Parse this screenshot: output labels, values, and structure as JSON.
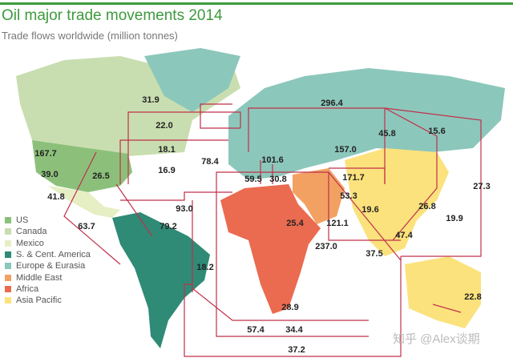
{
  "header": {
    "title": "Oil major trade movements 2014",
    "subtitle": "Trade flows worldwide (million tonnes)"
  },
  "colors": {
    "US": "#8cc07a",
    "Canada": "#c9deb0",
    "Mexico": "#e6eec4",
    "S. & Cent. America": "#2f8a76",
    "Europe & Eurasia": "#8cc7bb",
    "Middle East": "#f2a163",
    "Africa": "#ea6b50",
    "Asia Pacific": "#fbe27c",
    "flow_line": "#c0304a",
    "accent": "#3d9a3d"
  },
  "legend": [
    {
      "label": "US",
      "color": "#8cc07a"
    },
    {
      "label": "Canada",
      "color": "#c9deb0"
    },
    {
      "label": "Mexico",
      "color": "#e6eec4"
    },
    {
      "label": "S. & Cent. America",
      "color": "#2f8a76"
    },
    {
      "label": "Europe & Eurasia",
      "color": "#8cc7bb"
    },
    {
      "label": "Middle East",
      "color": "#f2a163"
    },
    {
      "label": "Africa",
      "color": "#ea6b50"
    },
    {
      "label": "Asia Pacific",
      "color": "#fbe27c"
    }
  ],
  "flows": [
    "31.9",
    "22.0",
    "18.1",
    "16.9",
    "167.7",
    "39.0",
    "26.5",
    "41.8",
    "78.4",
    "101.6",
    "59.5",
    "30.8",
    "93.0",
    "79.2",
    "63.7",
    "18.2",
    "296.4",
    "45.8",
    "15.6",
    "157.0",
    "171.7",
    "53.3",
    "19.6",
    "25.4",
    "121.1",
    "237.0",
    "47.4",
    "37.5",
    "26.8",
    "19.9",
    "27.3",
    "22.8",
    "28.9",
    "57.4",
    "34.4",
    "37.2"
  ],
  "watermark": "知乎 @Alex谈期"
}
